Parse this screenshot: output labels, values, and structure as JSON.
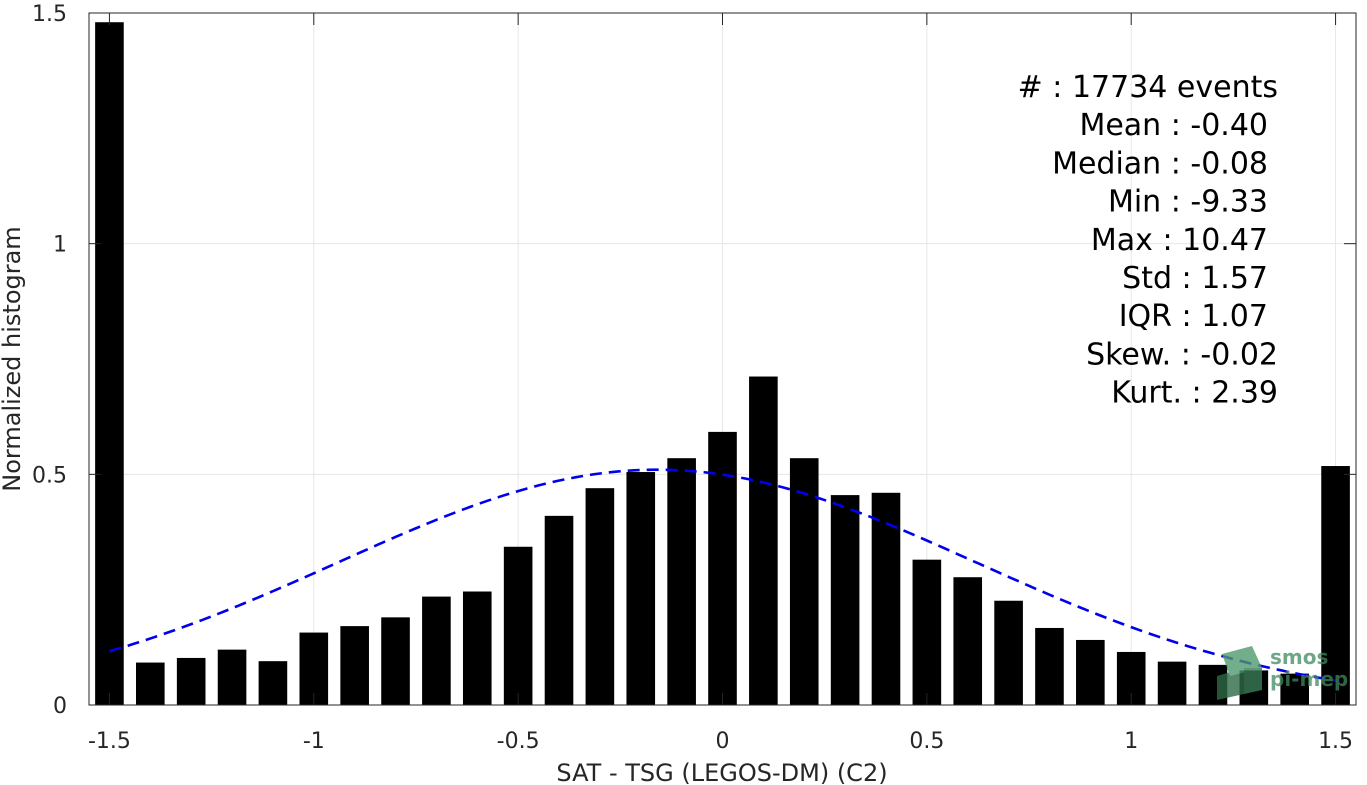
{
  "chart_data": {
    "type": "bar",
    "xlabel": "SAT - TSG (LEGOS-DM) (C2)",
    "ylabel": "Normalized histogram",
    "xlim": [
      -1.55,
      1.55
    ],
    "ylim": [
      0,
      1.5
    ],
    "xticks": [
      -1.5,
      -1,
      -0.5,
      0,
      0.5,
      1,
      1.5
    ],
    "xtick_labels": [
      "-1.5",
      "-1",
      "-0.5",
      "0",
      "0.5",
      "1",
      "1.5"
    ],
    "yticks": [
      0,
      0.5,
      1,
      1.5
    ],
    "ytick_labels": [
      "0",
      "0.5",
      "1",
      "1.5"
    ],
    "grid": true,
    "bar_color": "#000000",
    "bar_width": 0.07,
    "x": [
      -1.5,
      -1.4,
      -1.3,
      -1.2,
      -1.1,
      -1.0,
      -0.9,
      -0.8,
      -0.7,
      -0.6,
      -0.5,
      -0.4,
      -0.3,
      -0.2,
      -0.1,
      0.0,
      0.1,
      0.2,
      0.3,
      0.4,
      0.5,
      0.6,
      0.7,
      0.8,
      0.9,
      1.0,
      1.1,
      1.2,
      1.3,
      1.4,
      1.5
    ],
    "values": [
      1.48,
      0.092,
      0.102,
      0.12,
      0.095,
      0.157,
      0.171,
      0.19,
      0.235,
      0.246,
      0.343,
      0.41,
      0.47,
      0.505,
      0.535,
      0.592,
      0.712,
      0.535,
      0.455,
      0.46,
      0.315,
      0.277,
      0.226,
      0.167,
      0.141,
      0.115,
      0.094,
      0.087,
      0.075,
      0.068,
      0.518
    ],
    "fit_curve": {
      "style": "dashed",
      "color": "#0000ee",
      "x_range": [
        -1.5,
        1.5
      ],
      "mean": -0.16,
      "peak": 0.51,
      "sigma": 0.78
    },
    "stats": [
      {
        "label": "#  : 17734 events"
      },
      {
        "label": "Mean : -0.40"
      },
      {
        "label": "Median : -0.08"
      },
      {
        "label": "Min : -9.33"
      },
      {
        "label": "Max : 10.47"
      },
      {
        "label": "Std : 1.57"
      },
      {
        "label": "IQR : 1.07"
      },
      {
        "label": "Skew. : -0.02"
      },
      {
        "label": "Kurt. : 2.39"
      }
    ]
  },
  "logo": {
    "line1": "smos",
    "line2": "pi-mep",
    "color": "#3d8a5f"
  }
}
